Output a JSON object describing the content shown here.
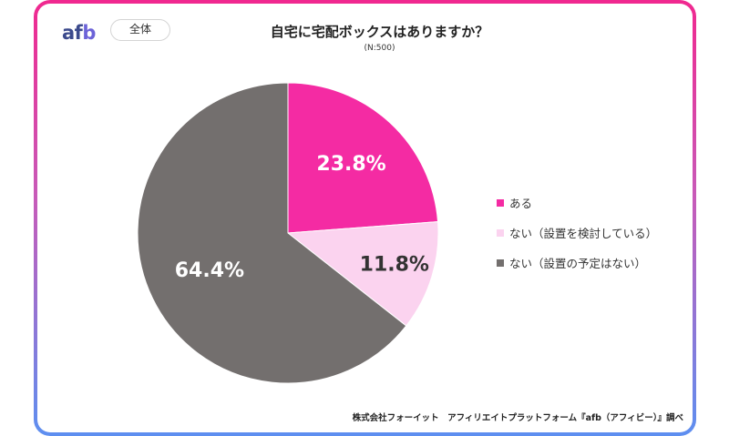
{
  "header": {
    "logo_a": "af",
    "logo_b": "b",
    "scope_label": "全体",
    "title": "自宅に宅配ボックスはありますか？",
    "sample": "(N:500)"
  },
  "chart_data": {
    "type": "pie",
    "title": "自宅に宅配ボックスはありますか？",
    "subtitle": "(N:500)",
    "slices": [
      {
        "label": "ある",
        "value": 23.8,
        "display": "23.8%",
        "color": "#f42ba3"
      },
      {
        "label": "ない（設置を検討している）",
        "value": 11.8,
        "display": "11.8%",
        "color": "#fbd3ef"
      },
      {
        "label": "ない（設置の予定はない）",
        "value": 64.4,
        "display": "64.4%",
        "color": "#736f6e"
      }
    ],
    "legend_position": "right"
  },
  "footer": {
    "source": "株式会社フォーイット　アフィリエイトプラットフォーム『afb（アフィビー）』調べ"
  }
}
